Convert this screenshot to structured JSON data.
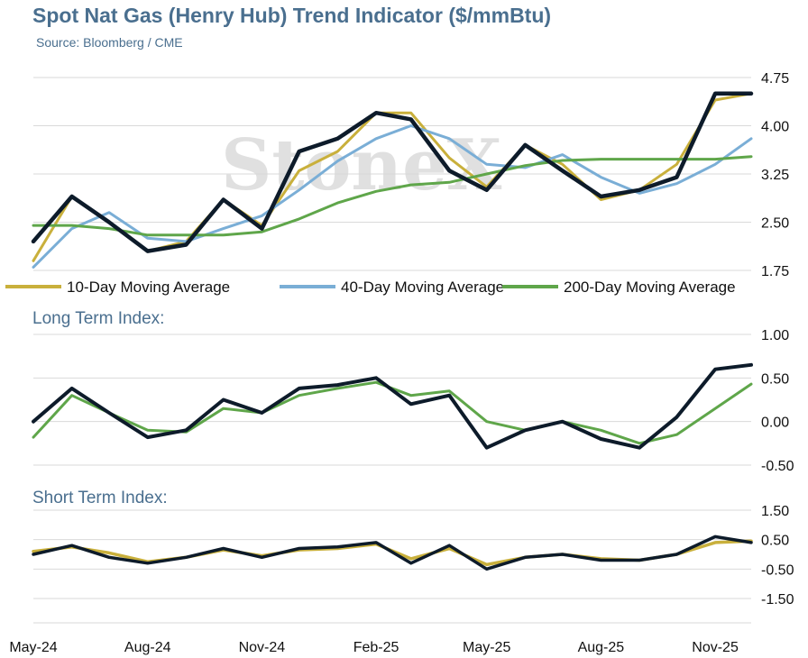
{
  "title": "Spot Nat Gas (Henry Hub) Trend Indicator ($/mmBtu)",
  "subtitle": "Source: Bloomberg / CME",
  "watermark": "StoneX",
  "colors": {
    "spot": "#0d1b2a",
    "ma10": "#c9b03c",
    "ma40": "#7aaed6",
    "ma200": "#5fa64a",
    "grid": "#d9d9d9",
    "title": "#4a6f8f"
  },
  "chart_data": [
    {
      "type": "line",
      "panel": "price",
      "x": [
        "2024-05-01",
        "2024-06-01",
        "2024-07-01",
        "2024-08-01",
        "2024-09-01",
        "2024-10-01",
        "2024-11-01",
        "2024-12-01",
        "2025-01-01",
        "2025-02-01",
        "2025-03-01",
        "2025-04-01",
        "2025-05-01",
        "2025-06-01",
        "2025-07-01",
        "2025-08-01",
        "2025-09-01",
        "2025-10-01",
        "2025-11-01",
        "2025-11-30"
      ],
      "series": [
        {
          "name": "",
          "color_key": "spot",
          "values": [
            2.2,
            2.9,
            2.5,
            2.05,
            2.15,
            2.85,
            2.4,
            3.6,
            3.8,
            4.2,
            4.1,
            3.3,
            3.0,
            3.7,
            3.3,
            2.9,
            3.0,
            3.2,
            4.5,
            4.5
          ]
        },
        {
          "name": "10-Day Moving Average",
          "color_key": "ma10",
          "values": [
            1.9,
            2.9,
            2.5,
            2.05,
            2.2,
            2.85,
            2.45,
            3.3,
            3.6,
            4.2,
            4.2,
            3.5,
            3.05,
            3.7,
            3.4,
            2.85,
            3.0,
            3.4,
            4.4,
            4.5
          ]
        },
        {
          "name": "40-Day Moving Average",
          "color_key": "ma40",
          "values": [
            1.8,
            2.4,
            2.65,
            2.25,
            2.2,
            2.4,
            2.6,
            3.0,
            3.45,
            3.8,
            4.0,
            3.8,
            3.4,
            3.35,
            3.55,
            3.2,
            2.95,
            3.1,
            3.4,
            3.8
          ]
        },
        {
          "name": "200-Day Moving Average",
          "color_key": "ma200",
          "values": [
            2.45,
            2.45,
            2.4,
            2.3,
            2.3,
            2.3,
            2.35,
            2.55,
            2.8,
            2.98,
            3.08,
            3.12,
            3.25,
            3.38,
            3.46,
            3.48,
            3.48,
            3.48,
            3.48,
            3.52
          ]
        }
      ],
      "ylim": [
        1.75,
        4.75
      ],
      "yticks": [
        "1.75",
        "2.50",
        "3.25",
        "4.00",
        "4.75"
      ]
    },
    {
      "type": "line",
      "panel": "long_term",
      "title": "Long Term Index:",
      "x": [
        "2024-05-01",
        "2024-06-01",
        "2024-07-01",
        "2024-08-01",
        "2024-09-01",
        "2024-10-01",
        "2024-11-01",
        "2024-12-01",
        "2025-01-01",
        "2025-02-01",
        "2025-03-01",
        "2025-04-01",
        "2025-05-01",
        "2025-06-01",
        "2025-07-01",
        "2025-08-01",
        "2025-09-01",
        "2025-10-01",
        "2025-11-01",
        "2025-11-30"
      ],
      "series": [
        {
          "name": "",
          "color_key": "spot",
          "values": [
            0.0,
            0.38,
            0.1,
            -0.18,
            -0.1,
            0.25,
            0.1,
            0.38,
            0.42,
            0.5,
            0.2,
            0.3,
            -0.3,
            -0.1,
            0.0,
            -0.2,
            -0.3,
            0.05,
            0.6,
            0.65
          ]
        },
        {
          "name": "",
          "color_key": "ma200",
          "values": [
            -0.18,
            0.3,
            0.1,
            -0.1,
            -0.12,
            0.15,
            0.1,
            0.3,
            0.38,
            0.45,
            0.3,
            0.35,
            0.0,
            -0.1,
            0.0,
            -0.1,
            -0.25,
            -0.15,
            0.15,
            0.43
          ]
        }
      ],
      "ylim": [
        -0.5,
        1.0
      ],
      "yticks": [
        "-0.50",
        "0.00",
        "0.50",
        "1.00"
      ]
    },
    {
      "type": "line",
      "panel": "short_term",
      "title": "Short Term Index:",
      "x": [
        "2024-05-01",
        "2024-06-01",
        "2024-07-01",
        "2024-08-01",
        "2024-09-01",
        "2024-10-01",
        "2024-11-01",
        "2024-12-01",
        "2025-01-01",
        "2025-02-01",
        "2025-03-01",
        "2025-04-01",
        "2025-05-01",
        "2025-06-01",
        "2025-07-01",
        "2025-08-01",
        "2025-09-01",
        "2025-10-01",
        "2025-11-01",
        "2025-11-30"
      ],
      "series": [
        {
          "name": "",
          "color_key": "spot",
          "values": [
            0.0,
            0.3,
            -0.1,
            -0.3,
            -0.1,
            0.2,
            -0.1,
            0.2,
            0.25,
            0.4,
            -0.3,
            0.3,
            -0.5,
            -0.1,
            0.0,
            -0.2,
            -0.2,
            0.0,
            0.6,
            0.4
          ]
        },
        {
          "name": "",
          "color_key": "ma10",
          "values": [
            0.1,
            0.25,
            0.05,
            -0.25,
            -0.1,
            0.15,
            -0.05,
            0.15,
            0.2,
            0.35,
            -0.15,
            0.2,
            -0.35,
            -0.1,
            0.0,
            -0.15,
            -0.2,
            0.0,
            0.4,
            0.45
          ]
        }
      ],
      "ylim": [
        -1.5,
        1.5
      ],
      "yticks": [
        "-1.50",
        "-0.50",
        "0.50",
        "1.50"
      ]
    }
  ],
  "xaxis": {
    "labels": [
      "May-24",
      "Aug-24",
      "Nov-24",
      "Feb-25",
      "May-25",
      "Aug-25",
      "Nov-25"
    ],
    "dates": [
      "2024-05-01",
      "2024-08-01",
      "2024-11-01",
      "2025-02-01",
      "2025-05-01",
      "2025-08-01",
      "2025-11-01"
    ]
  },
  "legend": [
    {
      "label": "10-Day Moving Average",
      "color_key": "ma10"
    },
    {
      "label": "40-Day Moving Average",
      "color_key": "ma40"
    },
    {
      "label": "200-Day Moving Average",
      "color_key": "ma200"
    }
  ]
}
